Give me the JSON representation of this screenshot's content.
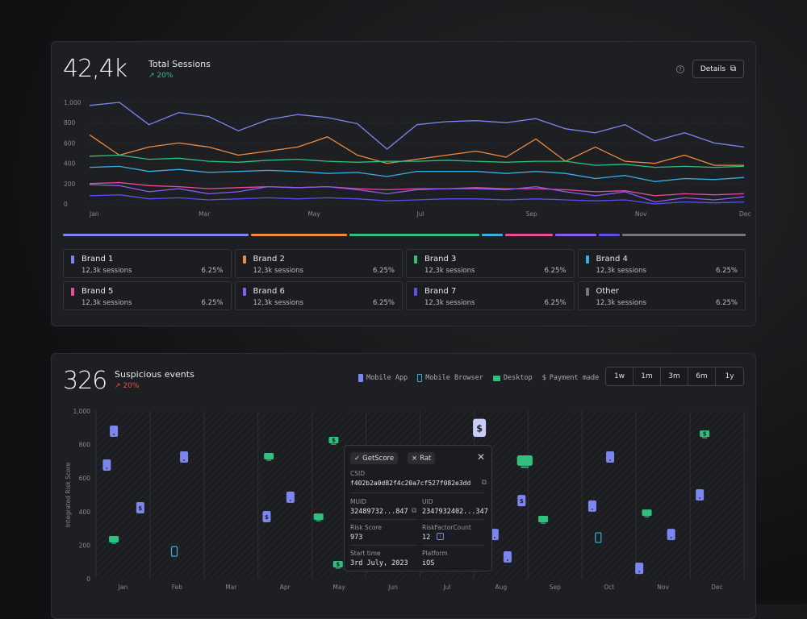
{
  "sessions": {
    "total": "42,4k",
    "title": "Total Sessions",
    "delta": "20%",
    "delta_color": "#2fc27f",
    "details_label": "Details",
    "help_icon": "question-circle-icon",
    "details_icon": "external-link-icon"
  },
  "brands": [
    {
      "name": "Brand 1",
      "sessions": "12,3k sessions",
      "percent": "6.25%",
      "color": "#7b86f0",
      "share": 27
    },
    {
      "name": "Brand 2",
      "sessions": "12,3k sessions",
      "percent": "6.25%",
      "color": "#f08a3c",
      "share": 14
    },
    {
      "name": "Brand 3",
      "sessions": "12,3k sessions",
      "percent": "6.25%",
      "color": "#2fc27f",
      "share": 19
    },
    {
      "name": "Brand 4",
      "sessions": "12,3k sessions",
      "percent": "6.25%",
      "color": "#3aaee0",
      "share": 3
    },
    {
      "name": "Brand 5",
      "sessions": "12,3k sessions",
      "percent": "6.25%",
      "color": "#ea4c9a",
      "share": 7
    },
    {
      "name": "Brand 6",
      "sessions": "12,3k sessions",
      "percent": "6.25%",
      "color": "#8a5cf5",
      "share": 6
    },
    {
      "name": "Brand 7",
      "sessions": "12,3k sessions",
      "percent": "6.25%",
      "color": "#5b4ff0",
      "share": 3
    },
    {
      "name": "Other",
      "sessions": "12,3k sessions",
      "percent": "6.25%",
      "color": "#77777c",
      "share": 18
    }
  ],
  "chart_data": [
    {
      "type": "line",
      "x_ticks": [
        "Jan",
        "Mar",
        "May",
        "Jul",
        "Sep",
        "Nov",
        "Dec"
      ],
      "y_ticks": [
        "0",
        "200",
        "400",
        "600",
        "800",
        "1,000"
      ],
      "ylim": [
        0,
        1000
      ],
      "grid": true,
      "series": [
        {
          "values": [
            970,
            1000,
            780,
            900,
            860,
            720,
            830,
            880,
            850,
            790,
            540,
            780,
            810,
            820,
            800,
            840,
            740,
            700,
            780,
            620,
            700,
            600,
            560
          ],
          "color": "#7b86f0"
        },
        {
          "values": [
            680,
            480,
            560,
            600,
            560,
            480,
            520,
            560,
            660,
            480,
            400,
            440,
            480,
            520,
            460,
            640,
            420,
            560,
            420,
            400,
            480,
            380,
            380
          ],
          "color": "#f08a3c"
        },
        {
          "values": [
            470,
            480,
            440,
            450,
            420,
            410,
            430,
            440,
            420,
            410,
            420,
            420,
            430,
            420,
            410,
            420,
            420,
            380,
            390,
            360,
            370,
            360,
            370
          ],
          "color": "#2fc27f"
        },
        {
          "values": [
            360,
            370,
            320,
            340,
            310,
            320,
            330,
            320,
            300,
            310,
            270,
            320,
            320,
            320,
            300,
            320,
            300,
            250,
            280,
            220,
            250,
            240,
            260
          ],
          "color": "#3aaee0"
        },
        {
          "values": [
            200,
            210,
            180,
            170,
            150,
            160,
            170,
            160,
            170,
            150,
            140,
            150,
            150,
            160,
            150,
            150,
            140,
            120,
            130,
            80,
            100,
            90,
            100
          ],
          "color": "#ea4c9a"
        },
        {
          "values": [
            190,
            180,
            120,
            150,
            100,
            120,
            170,
            160,
            170,
            140,
            100,
            140,
            150,
            150,
            140,
            170,
            120,
            80,
            120,
            20,
            60,
            40,
            70
          ],
          "color": "#8a5cf5"
        },
        {
          "values": [
            80,
            90,
            50,
            60,
            40,
            50,
            60,
            50,
            60,
            50,
            30,
            40,
            50,
            50,
            40,
            50,
            40,
            30,
            40,
            0,
            20,
            10,
            20
          ],
          "color": "#5b4ff0"
        }
      ]
    },
    {
      "type": "scatter",
      "ylabel": "Integrated Risk Score",
      "x_ticks": [
        "Jan",
        "Feb",
        "Mar",
        "Apr",
        "May",
        "Jun",
        "Jul",
        "Aug",
        "Sep",
        "Oct",
        "Nov",
        "Dec"
      ],
      "y_ticks": [
        "0",
        "200",
        "400",
        "600",
        "800",
        "1,000"
      ],
      "ylim": [
        0,
        1000
      ],
      "points": [
        {
          "month": -0.17,
          "score": 880,
          "type": "mobile-app"
        },
        {
          "month": -0.3,
          "score": 678,
          "type": "mobile-app"
        },
        {
          "month": 0.32,
          "score": 423,
          "type": "mobile-app",
          "payment": true
        },
        {
          "month": -0.17,
          "score": 231,
          "type": "desktop"
        },
        {
          "month": 0.95,
          "score": 163,
          "type": "mobile-browser"
        },
        {
          "month": 1.13,
          "score": 726,
          "type": "mobile-app"
        },
        {
          "month": 2.7,
          "score": 726,
          "type": "desktop"
        },
        {
          "month": 2.66,
          "score": 370,
          "type": "mobile-app",
          "payment": true
        },
        {
          "month": 3.1,
          "score": 486,
          "type": "mobile-app"
        },
        {
          "month": 3.62,
          "score": 365,
          "type": "desktop"
        },
        {
          "month": 3.9,
          "score": 822,
          "type": "desktop",
          "payment": true
        },
        {
          "month": 3.98,
          "score": 82,
          "type": "desktop",
          "payment": true
        },
        {
          "month": 6.6,
          "score": 900,
          "type": "mobile-app",
          "payment": true,
          "selected": true
        },
        {
          "month": 7.44,
          "score": 697,
          "type": "desktop",
          "large": true
        },
        {
          "month": 7.38,
          "score": 466,
          "type": "mobile-app",
          "payment": true
        },
        {
          "month": 6.88,
          "score": 264,
          "type": "mobile-app"
        },
        {
          "month": 7.12,
          "score": 130,
          "type": "mobile-app"
        },
        {
          "month": 7.78,
          "score": 351,
          "type": "desktop"
        },
        {
          "month": 8.69,
          "score": 433,
          "type": "mobile-app"
        },
        {
          "month": 9.02,
          "score": 726,
          "type": "mobile-app"
        },
        {
          "month": 8.8,
          "score": 245,
          "type": "mobile-browser"
        },
        {
          "month": 9.56,
          "score": 62,
          "type": "mobile-app"
        },
        {
          "month": 9.7,
          "score": 389,
          "type": "desktop"
        },
        {
          "month": 10.15,
          "score": 264,
          "type": "mobile-app"
        },
        {
          "month": 10.68,
          "score": 500,
          "type": "mobile-app"
        },
        {
          "month": 10.77,
          "score": 860,
          "type": "desktop",
          "payment": true
        }
      ]
    }
  ],
  "events": {
    "total": "326",
    "title": "Suspicious events",
    "delta": "20%",
    "delta_color": "#e8533f",
    "legend": [
      {
        "label": "Mobile App",
        "icon": "mobile-app-icon",
        "color": "#7b86f0"
      },
      {
        "label": "Mobile Browser",
        "icon": "mobile-browser-icon",
        "color": "#3aaee0"
      },
      {
        "label": "Desktop",
        "icon": "desktop-icon",
        "color": "#2fc27f"
      },
      {
        "label": "Payment made",
        "icon": "dollar-icon",
        "color": "#aaa"
      }
    ],
    "ranges": [
      "1w",
      "1m",
      "3m",
      "6m",
      "1y"
    ]
  },
  "tooltip": {
    "chips": [
      "GetScore",
      "Rat"
    ],
    "csid_label": "CSID",
    "csid": "f402b2a0d82f4c20a7cf527f082e3dd",
    "muid_label": "MUID",
    "muid": "32489732...847",
    "uid_label": "UID",
    "uid": "2347932402...347",
    "risk_label": "Risk Score",
    "risk": "973",
    "rfc_label": "RiskFactorCount",
    "rfc": "12",
    "start_label": "Start time",
    "start": "3rd July, 2023",
    "platform_label": "Platform",
    "platform": "iOS"
  }
}
